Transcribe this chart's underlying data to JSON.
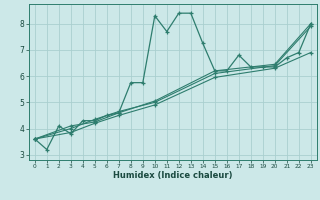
{
  "xlabel": "Humidex (Indice chaleur)",
  "background_color": "#cce8e8",
  "grid_color": "#aacfcf",
  "line_color": "#2e7d6e",
  "xlim": [
    -0.5,
    23.5
  ],
  "ylim": [
    2.8,
    8.75
  ],
  "xticks": [
    0,
    1,
    2,
    3,
    4,
    5,
    6,
    7,
    8,
    9,
    10,
    11,
    12,
    13,
    14,
    15,
    16,
    17,
    18,
    19,
    20,
    21,
    22,
    23
  ],
  "yticks": [
    3,
    4,
    5,
    6,
    7,
    8
  ],
  "line_main": [
    0,
    3.6,
    1,
    3.2,
    2,
    4.1,
    3,
    3.8,
    4,
    4.3,
    5,
    4.3,
    6,
    4.5,
    7,
    4.6,
    8,
    5.75,
    9,
    5.75,
    10,
    8.3,
    11,
    7.7,
    12,
    8.4,
    13,
    8.4,
    14,
    7.25,
    15,
    6.2,
    16,
    6.2,
    17,
    6.8,
    18,
    6.35,
    19,
    6.35,
    20,
    6.35,
    21,
    6.7,
    22,
    6.9,
    23,
    8.0
  ],
  "line2": [
    0,
    3.6,
    3,
    4.1,
    5,
    4.25,
    7,
    4.6,
    10,
    5.05,
    15,
    6.2,
    20,
    6.45,
    23,
    8.0
  ],
  "line3": [
    0,
    3.6,
    3,
    4.0,
    5,
    4.35,
    7,
    4.65,
    10,
    5.0,
    15,
    6.1,
    20,
    6.4,
    23,
    7.9
  ],
  "line4": [
    0,
    3.6,
    3,
    3.85,
    5,
    4.2,
    7,
    4.5,
    10,
    4.9,
    15,
    5.95,
    20,
    6.3,
    23,
    6.9
  ]
}
